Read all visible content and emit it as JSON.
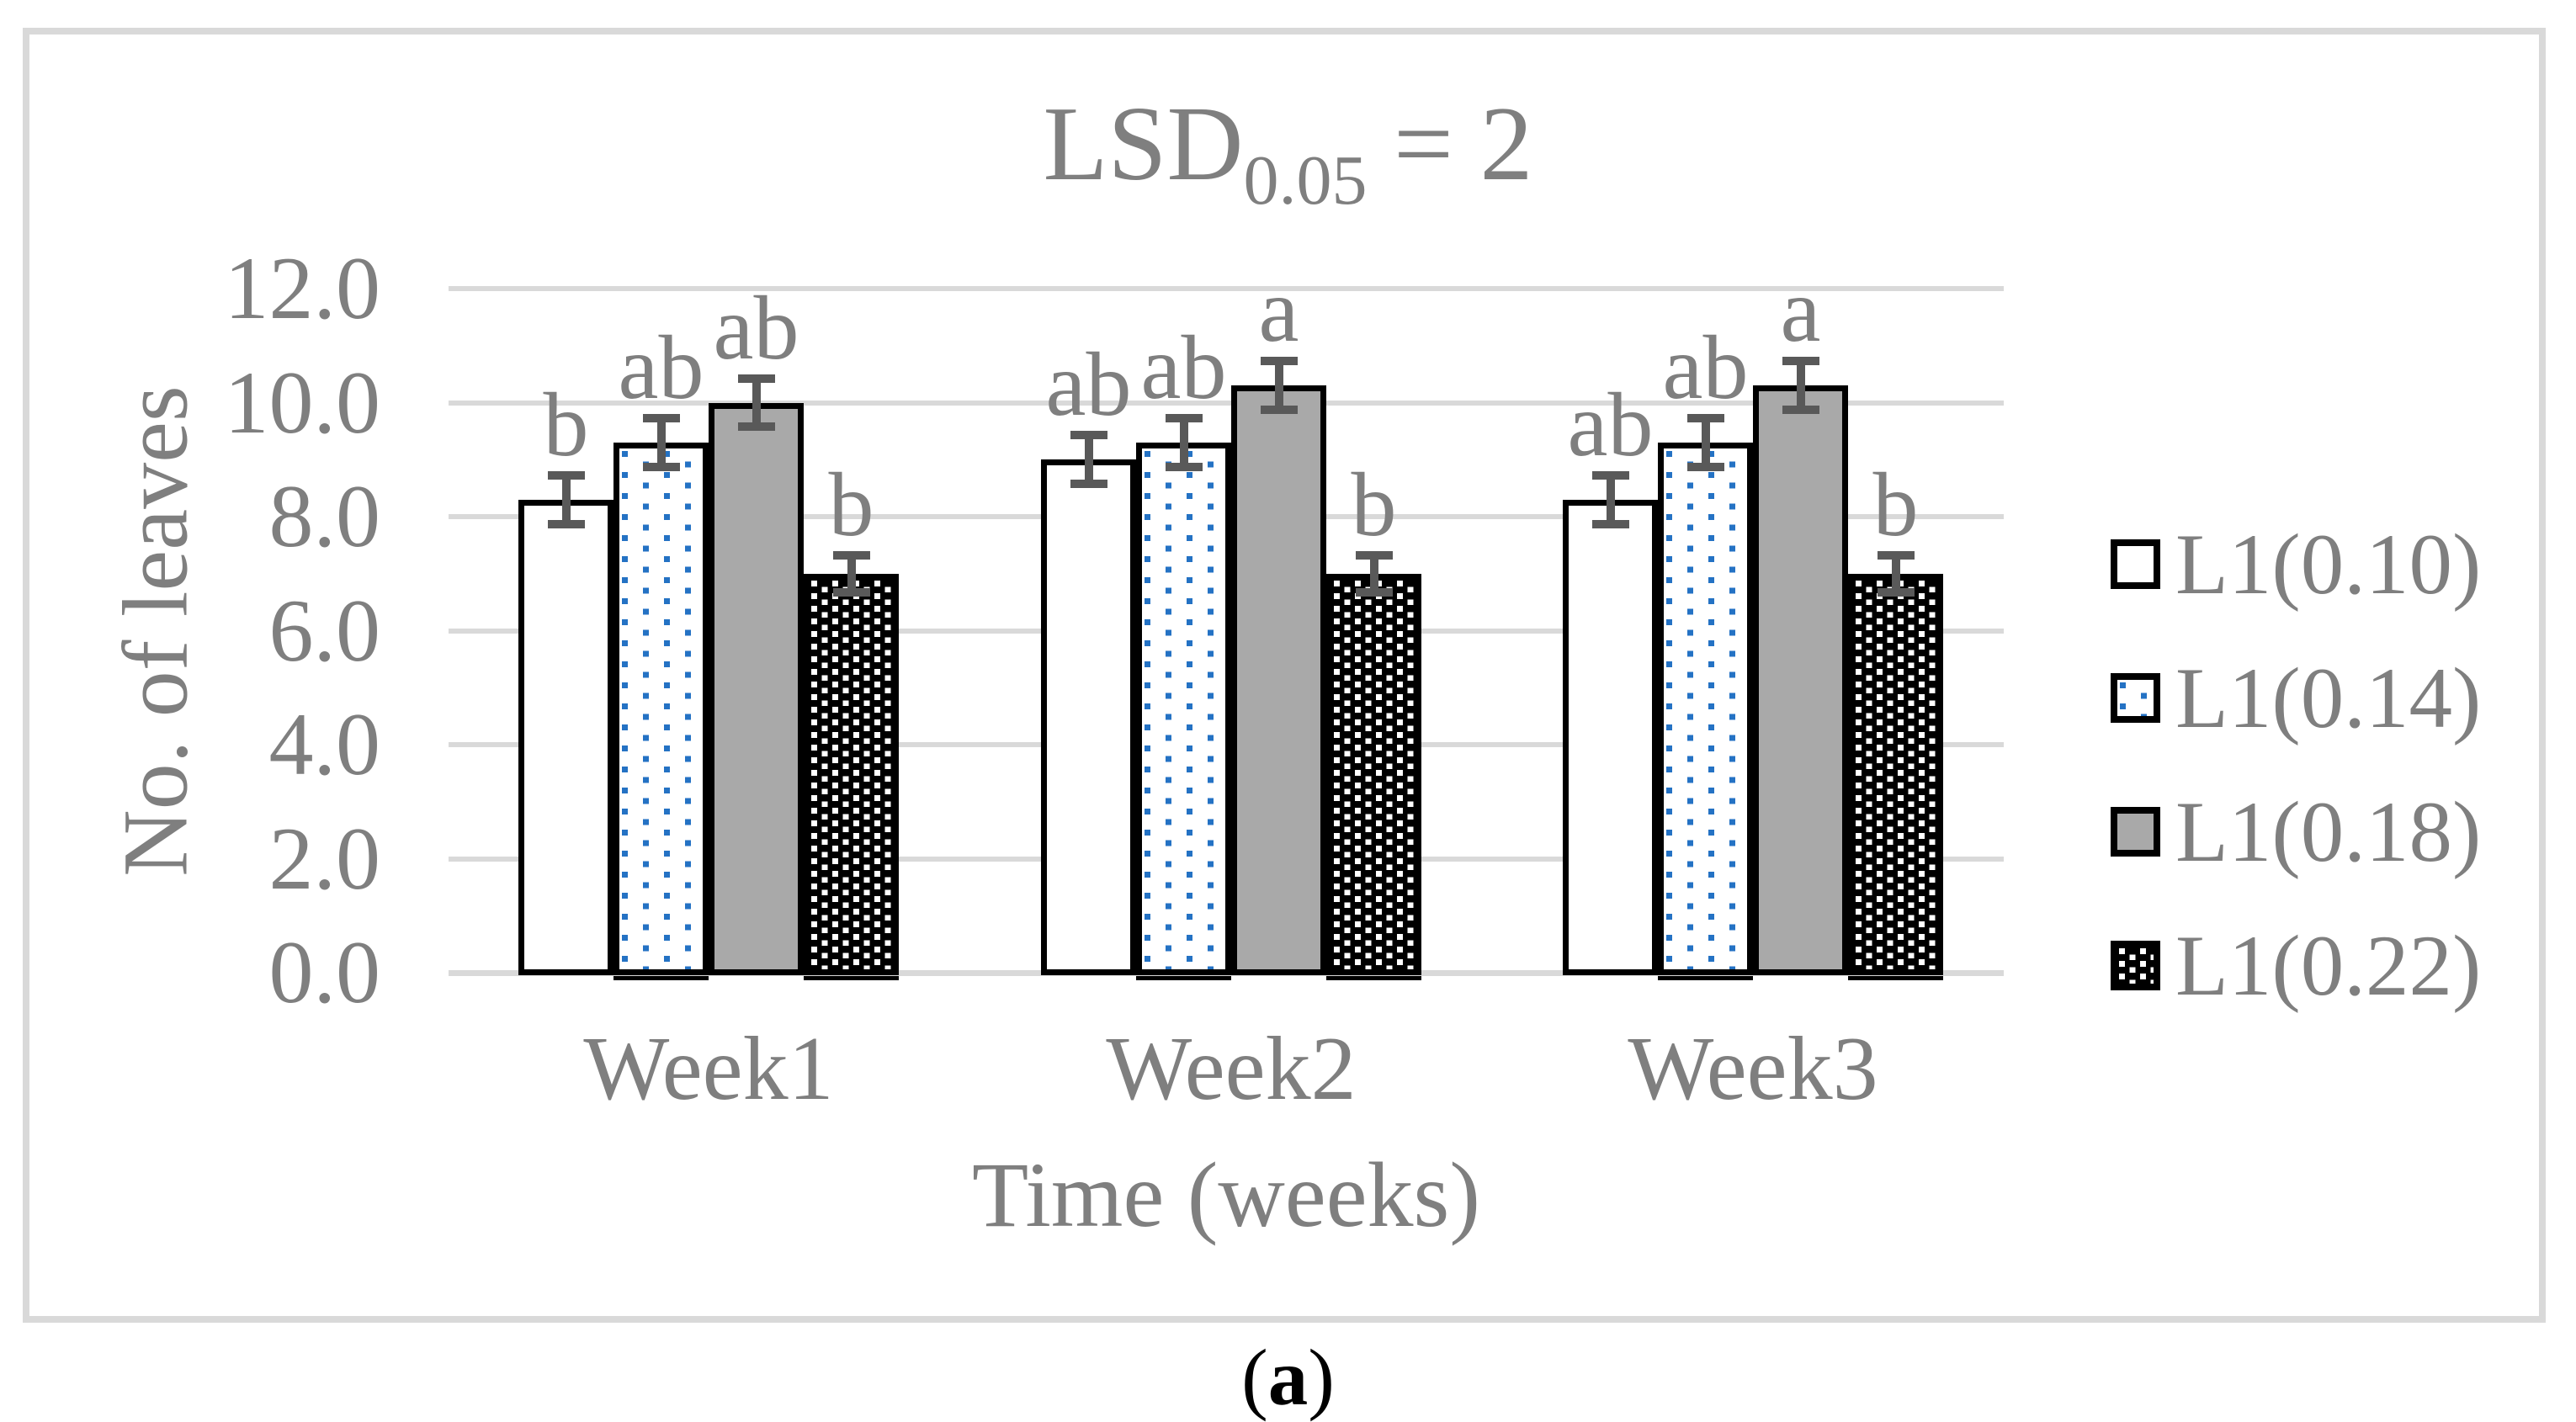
{
  "title": {
    "prefix": "LSD",
    "subscript": "0.05",
    "suffix": " = 2"
  },
  "caption": {
    "prefix": "(",
    "label": "a",
    "suffix": ")"
  },
  "chart_data": {
    "type": "bar",
    "title": "LSD0.05 = 2",
    "categories": [
      "Week1",
      "Week2",
      "Week3"
    ],
    "series": [
      {
        "name": "L1(0.10)",
        "fill": "white",
        "values": [
          8.3,
          9.0,
          8.3
        ],
        "errors": [
          0.5,
          0.5,
          0.5
        ],
        "sig_letters": [
          "b",
          "ab",
          "ab"
        ]
      },
      {
        "name": "L1(0.14)",
        "fill": "blue-dots",
        "values": [
          9.3,
          9.3,
          9.3
        ],
        "errors": [
          0.5,
          0.5,
          0.5
        ],
        "sig_letters": [
          "ab",
          "ab",
          "ab"
        ]
      },
      {
        "name": "L1(0.18)",
        "fill": "gray",
        "values": [
          10.0,
          10.3,
          10.3
        ],
        "errors": [
          0.5,
          0.5,
          0.5
        ],
        "sig_letters": [
          "ab",
          "a",
          "a"
        ]
      },
      {
        "name": "L1(0.22)",
        "fill": "black-dots",
        "values": [
          7.0,
          7.0,
          7.0
        ],
        "errors": [
          0.4,
          0.4,
          0.4
        ],
        "sig_letters": [
          "b",
          "b",
          "b"
        ]
      }
    ],
    "xlabel": "Time (weeks)",
    "ylabel": "No. of leaves",
    "ylim": [
      0,
      12
    ],
    "ytick_labels": [
      "0.0",
      "2.0",
      "4.0",
      "6.0",
      "8.0",
      "10.0",
      "12.0"
    ],
    "grid": true,
    "legend_position": "right"
  },
  "colors": {
    "accent_blue": "#2472C4",
    "bar_gray": "#A9A9A9",
    "grid": "#D9D9D9",
    "text_gray": "#7F7F7F",
    "error_bar": "#595959",
    "outline": "#000000"
  }
}
